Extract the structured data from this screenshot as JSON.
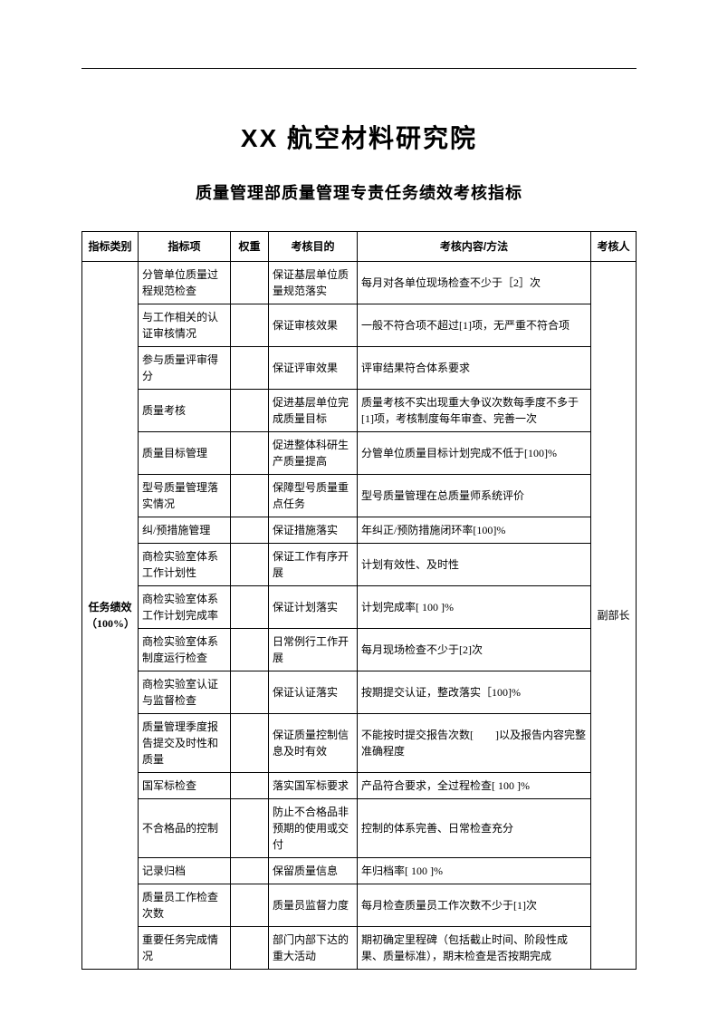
{
  "title": "XX 航空材料研究院",
  "subtitle": "质量管理部质量管理专责任务绩效考核指标",
  "headers": {
    "category": "指标类别",
    "item": "指标项",
    "weight": "权重",
    "purpose": "考核目的",
    "method": "考核内容/方法",
    "assessor": "考核人"
  },
  "category_label": "任务绩效（100%）",
  "assessor_label": "副部长",
  "rows": [
    {
      "item": "分管单位质量过程规范检查",
      "weight": "",
      "purpose": "保证基层单位质量规范落实",
      "method": "每月对各单位现场检查不少于［2］次"
    },
    {
      "item": "与工作相关的认证审核情况",
      "weight": "",
      "purpose": "保证审核效果",
      "method": "一般不符合项不超过[1]项，无严重不符合项"
    },
    {
      "item": "参与质量评审得分",
      "weight": "",
      "purpose": "保证评审效果",
      "method": "评审结果符合体系要求"
    },
    {
      "item": "质量考核",
      "weight": "",
      "purpose": "促进基层单位完成质量目标",
      "method": "质量考核不实出现重大争议次数每季度不多于[1]项，考核制度每年审查、完善一次"
    },
    {
      "item": "质量目标管理",
      "weight": "",
      "purpose": "促进整体科研生产质量提高",
      "method": "分管单位质量目标计划完成不低于[100]%"
    },
    {
      "item": "型号质量管理落实情况",
      "weight": "",
      "purpose": "保障型号质量重点任务",
      "method": "型号质量管理在总质量师系统评价"
    },
    {
      "item": "纠/预措施管理",
      "weight": "",
      "purpose": "保证措施落实",
      "method": "年纠正/预防措施闭环率[100]%"
    },
    {
      "item": "商检实验室体系工作计划性",
      "weight": "",
      "purpose": "保证工作有序开展",
      "method": "计划有效性、及时性"
    },
    {
      "item": "商检实验室体系工作计划完成率",
      "weight": "",
      "purpose": "保证计划落实",
      "method": "计划完成率[ 100 ]%"
    },
    {
      "item": "商检实验室体系制度运行检查",
      "weight": "",
      "purpose": "日常例行工作开展",
      "method": "每月现场检查不少于[2]次"
    },
    {
      "item": "商检实验室认证与监督检查",
      "weight": "",
      "purpose": "保证认证落实",
      "method": "按期提交认证，整改落实［100]%"
    },
    {
      "item": "质量管理季度报告提交及时性和质量",
      "weight": "",
      "purpose": "保证质量控制信息及时有效",
      "method": "不能按时提交报告次数[　　]以及报告内容完整准确程度"
    },
    {
      "item": "国军标检查",
      "weight": "",
      "purpose": "落实国军标要求",
      "method": "产品符合要求，全过程检查[ 100 ]%"
    },
    {
      "item": "不合格品的控制",
      "weight": "",
      "purpose": "防止不合格品非预期的使用或交付",
      "method": "控制的体系完善、日常检查充分"
    },
    {
      "item": "记录归档",
      "weight": "",
      "purpose": "保留质量信息",
      "method": "年归档率[ 100 ]%"
    },
    {
      "item": "质量员工作检查次数",
      "weight": "",
      "purpose": "质量员监督力度",
      "method": "每月检查质量员工作次数不少于[1]次"
    },
    {
      "item": "重要任务完成情况",
      "weight": "",
      "purpose": "部门内部下达的重大活动",
      "method": "期初确定里程碑（包括截止时间、阶段性成果、质量标准），期末检查是否按期完成"
    }
  ]
}
